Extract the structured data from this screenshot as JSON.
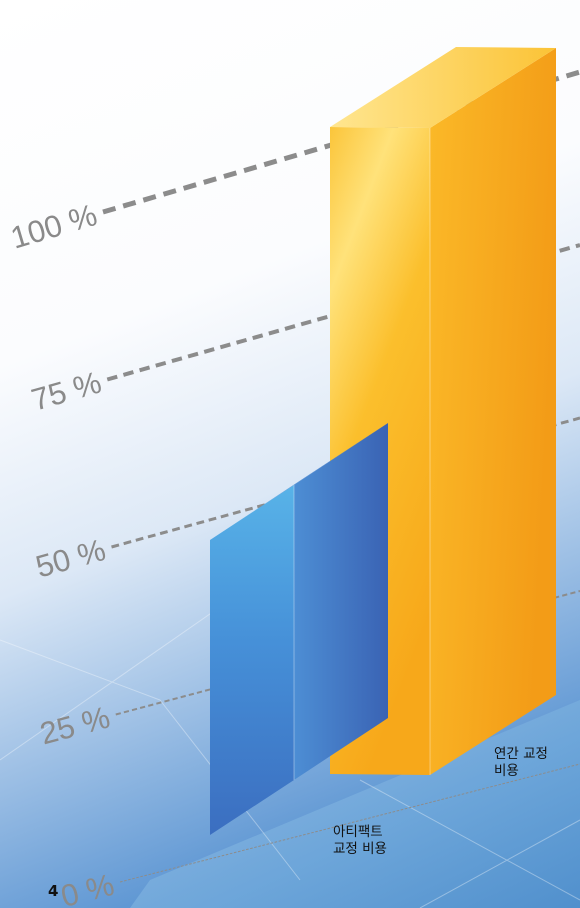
{
  "chart_data": {
    "type": "bar",
    "categories": [
      [
        "아티팩트",
        "교정 비용"
      ],
      [
        "연간 교정",
        "비용"
      ]
    ],
    "values": [
      50,
      100
    ],
    "yticks": [
      "0 %",
      "25 %",
      "50 %",
      "75 %",
      "100 %"
    ],
    "ylim": [
      0,
      100
    ],
    "title": "",
    "xlabel": "",
    "ylabel": "",
    "colors": [
      "#3f78c9",
      "#f9b91c"
    ],
    "grid": true,
    "style": "3d"
  },
  "page_number": "4"
}
